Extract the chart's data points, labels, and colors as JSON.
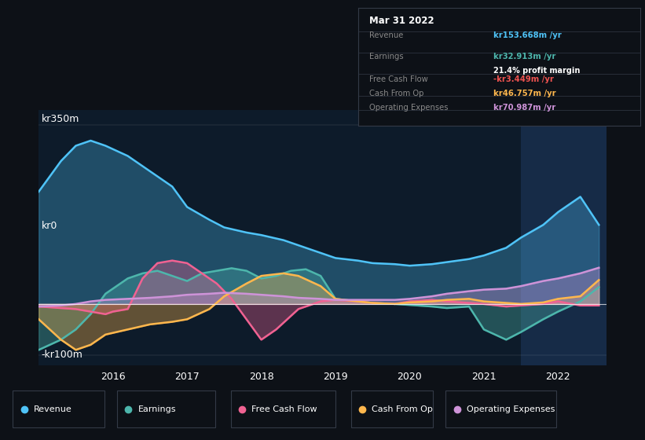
{
  "bg_color": "#0d1117",
  "plot_bg_color": "#0d1b2a",
  "grid_color": "#2a3a4a",
  "ylabel_top": "kr350m",
  "ylabel_zero": "kr0",
  "ylabel_bottom": "-kr100m",
  "ylim": [
    -120,
    380
  ],
  "xlim_start": 2015.0,
  "xlim_end": 2022.65,
  "xticks": [
    2016,
    2017,
    2018,
    2019,
    2020,
    2021,
    2022
  ],
  "highlight_x_start": 2021.5,
  "highlight_x_end": 2022.65,
  "colors": {
    "revenue": "#4fc3f7",
    "earnings": "#4db6ac",
    "free_cash_flow": "#f06292",
    "cash_from_op": "#ffb74d",
    "operating_expenses": "#ce93d8"
  },
  "info_box": {
    "title": "Mar 31 2022",
    "revenue_label": "Revenue",
    "revenue_value": "kr153.668m /yr",
    "revenue_color": "#4fc3f7",
    "earnings_label": "Earnings",
    "earnings_value": "kr32.913m /yr",
    "earnings_color": "#4db6ac",
    "margin_value": "21.4% profit margin",
    "fcf_label": "Free Cash Flow",
    "fcf_value": "-kr3.449m /yr",
    "fcf_color": "#ef5350",
    "cfop_label": "Cash From Op",
    "cfop_value": "kr46.757m /yr",
    "cfop_color": "#ffb74d",
    "opex_label": "Operating Expenses",
    "opex_value": "kr70.987m /yr",
    "opex_color": "#ce93d8"
  },
  "legend": [
    {
      "label": "Revenue",
      "color": "#4fc3f7"
    },
    {
      "label": "Earnings",
      "color": "#4db6ac"
    },
    {
      "label": "Free Cash Flow",
      "color": "#f06292"
    },
    {
      "label": "Cash From Op",
      "color": "#ffb74d"
    },
    {
      "label": "Operating Expenses",
      "color": "#ce93d8"
    }
  ],
  "revenue": {
    "x": [
      2015.0,
      2015.3,
      2015.5,
      2015.7,
      2015.9,
      2016.2,
      2016.5,
      2016.8,
      2017.0,
      2017.3,
      2017.5,
      2017.8,
      2018.0,
      2018.3,
      2018.5,
      2018.8,
      2019.0,
      2019.3,
      2019.5,
      2019.8,
      2020.0,
      2020.3,
      2020.5,
      2020.8,
      2021.0,
      2021.3,
      2021.5,
      2021.8,
      2022.0,
      2022.3,
      2022.55
    ],
    "y": [
      220,
      280,
      310,
      320,
      310,
      290,
      260,
      230,
      190,
      165,
      150,
      140,
      135,
      125,
      115,
      100,
      90,
      85,
      80,
      78,
      75,
      78,
      82,
      88,
      95,
      110,
      130,
      155,
      180,
      210,
      155
    ]
  },
  "earnings": {
    "x": [
      2015.0,
      2015.3,
      2015.5,
      2015.7,
      2015.9,
      2016.2,
      2016.4,
      2016.6,
      2016.8,
      2017.0,
      2017.2,
      2017.4,
      2017.6,
      2017.8,
      2018.0,
      2018.2,
      2018.4,
      2018.6,
      2018.8,
      2019.0,
      2019.3,
      2019.5,
      2019.8,
      2020.0,
      2020.3,
      2020.5,
      2020.8,
      2021.0,
      2021.3,
      2021.5,
      2021.8,
      2022.0,
      2022.3,
      2022.55
    ],
    "y": [
      -90,
      -70,
      -50,
      -20,
      20,
      50,
      60,
      65,
      55,
      45,
      60,
      65,
      70,
      65,
      50,
      55,
      65,
      68,
      55,
      10,
      5,
      2,
      0,
      -2,
      -5,
      -8,
      -5,
      -50,
      -70,
      -55,
      -30,
      -15,
      5,
      33
    ]
  },
  "free_cash_flow": {
    "x": [
      2015.0,
      2015.3,
      2015.5,
      2015.7,
      2015.9,
      2016.0,
      2016.2,
      2016.4,
      2016.6,
      2016.8,
      2017.0,
      2017.2,
      2017.4,
      2017.6,
      2017.8,
      2018.0,
      2018.2,
      2018.5,
      2018.8,
      2019.0,
      2019.3,
      2019.5,
      2019.8,
      2020.0,
      2020.3,
      2020.5,
      2020.8,
      2021.0,
      2021.3,
      2021.5,
      2021.8,
      2022.0,
      2022.3,
      2022.55
    ],
    "y": [
      -5,
      -8,
      -10,
      -15,
      -20,
      -15,
      -10,
      50,
      80,
      85,
      80,
      60,
      40,
      10,
      -30,
      -70,
      -50,
      -10,
      5,
      8,
      5,
      2,
      0,
      5,
      8,
      5,
      2,
      0,
      -5,
      -3,
      0,
      5,
      -3,
      -3
    ]
  },
  "cash_from_op": {
    "x": [
      2015.0,
      2015.3,
      2015.5,
      2015.7,
      2015.9,
      2016.2,
      2016.5,
      2016.8,
      2017.0,
      2017.3,
      2017.5,
      2017.8,
      2018.0,
      2018.3,
      2018.5,
      2018.8,
      2019.0,
      2019.3,
      2019.5,
      2019.8,
      2020.0,
      2020.3,
      2020.5,
      2020.8,
      2021.0,
      2021.3,
      2021.5,
      2021.8,
      2022.0,
      2022.3,
      2022.55
    ],
    "y": [
      -30,
      -70,
      -90,
      -80,
      -60,
      -50,
      -40,
      -35,
      -30,
      -10,
      15,
      40,
      55,
      60,
      55,
      35,
      10,
      5,
      2,
      0,
      3,
      5,
      8,
      10,
      5,
      2,
      0,
      3,
      10,
      15,
      47
    ]
  },
  "operating_expenses": {
    "x": [
      2015.0,
      2015.3,
      2015.5,
      2015.7,
      2015.9,
      2016.2,
      2016.5,
      2016.8,
      2017.0,
      2017.3,
      2017.5,
      2017.8,
      2018.0,
      2018.3,
      2018.5,
      2018.8,
      2019.0,
      2019.3,
      2019.5,
      2019.8,
      2020.0,
      2020.3,
      2020.5,
      2020.8,
      2021.0,
      2021.3,
      2021.5,
      2021.8,
      2022.0,
      2022.3,
      2022.55
    ],
    "y": [
      -5,
      -3,
      0,
      5,
      8,
      10,
      12,
      15,
      18,
      20,
      22,
      20,
      18,
      15,
      12,
      10,
      8,
      8,
      8,
      8,
      10,
      15,
      20,
      25,
      28,
      30,
      35,
      45,
      50,
      60,
      71
    ]
  }
}
